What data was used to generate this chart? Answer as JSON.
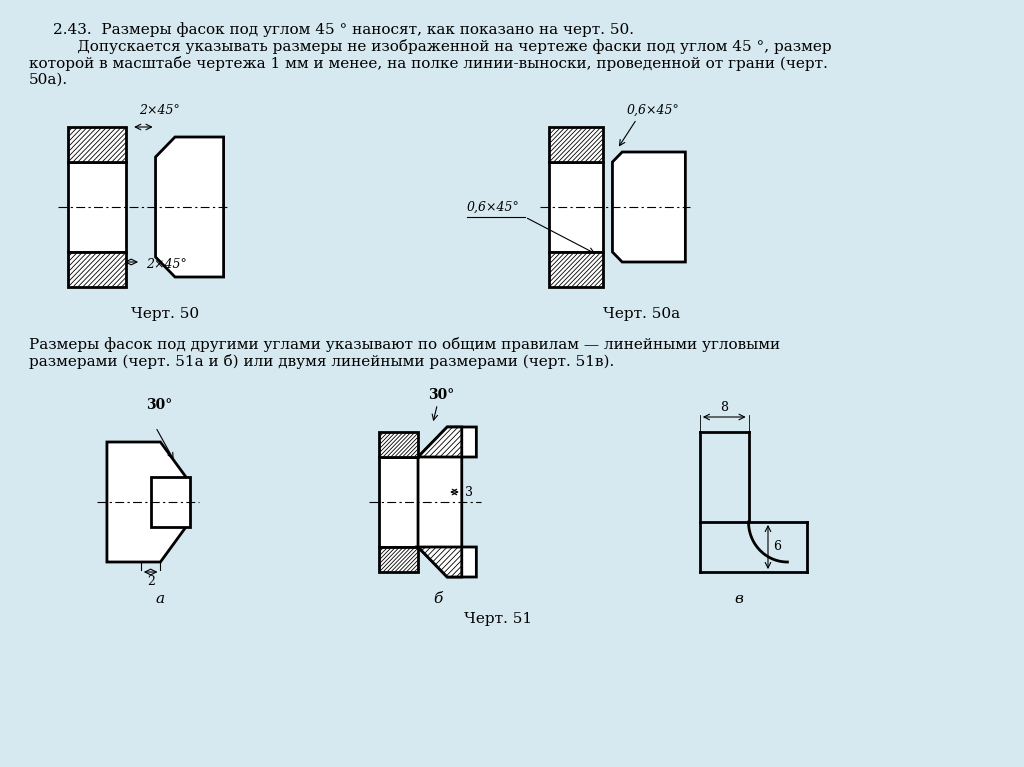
{
  "bg_color": "#d6e8f0",
  "text_color": "#000000",
  "line_color": "#000000",
  "title_text1": "2.43.  Размеры фасок под углом 45 ° наносят, как показано на черт. 50.",
  "title_text2": "     Допускается указывать размеры не изображенной на чертеже фаски под углом 45 °, размер",
  "title_text3": "которой в масштабе чертежа 1 мм и менее, на полке линии-выноски, проведенной от грани (черт.",
  "title_text4": "50а).",
  "caption50": "Черт. 50",
  "caption50a": "Черт. 50а",
  "caption51": "Черт. 51",
  "label_2x45_top": "2×45°",
  "label_2x45_side": "2×45°",
  "label_06x45_top": "0,6×45°",
  "label_06x45_side": "0,6×45°",
  "text_mid1": "Размеры фасок под другими углами указывают по общим правилам — линейными угловыми",
  "text_mid2": "размерами (черт. 51а и б) или двумя линейными размерами (черт. 51в).",
  "label_30a": "30°",
  "label_30b": "30°",
  "label_2": "2",
  "label_3": "3",
  "label_8": "8",
  "label_6": "6",
  "label_a": "а",
  "label_b": "б",
  "label_v": "в"
}
